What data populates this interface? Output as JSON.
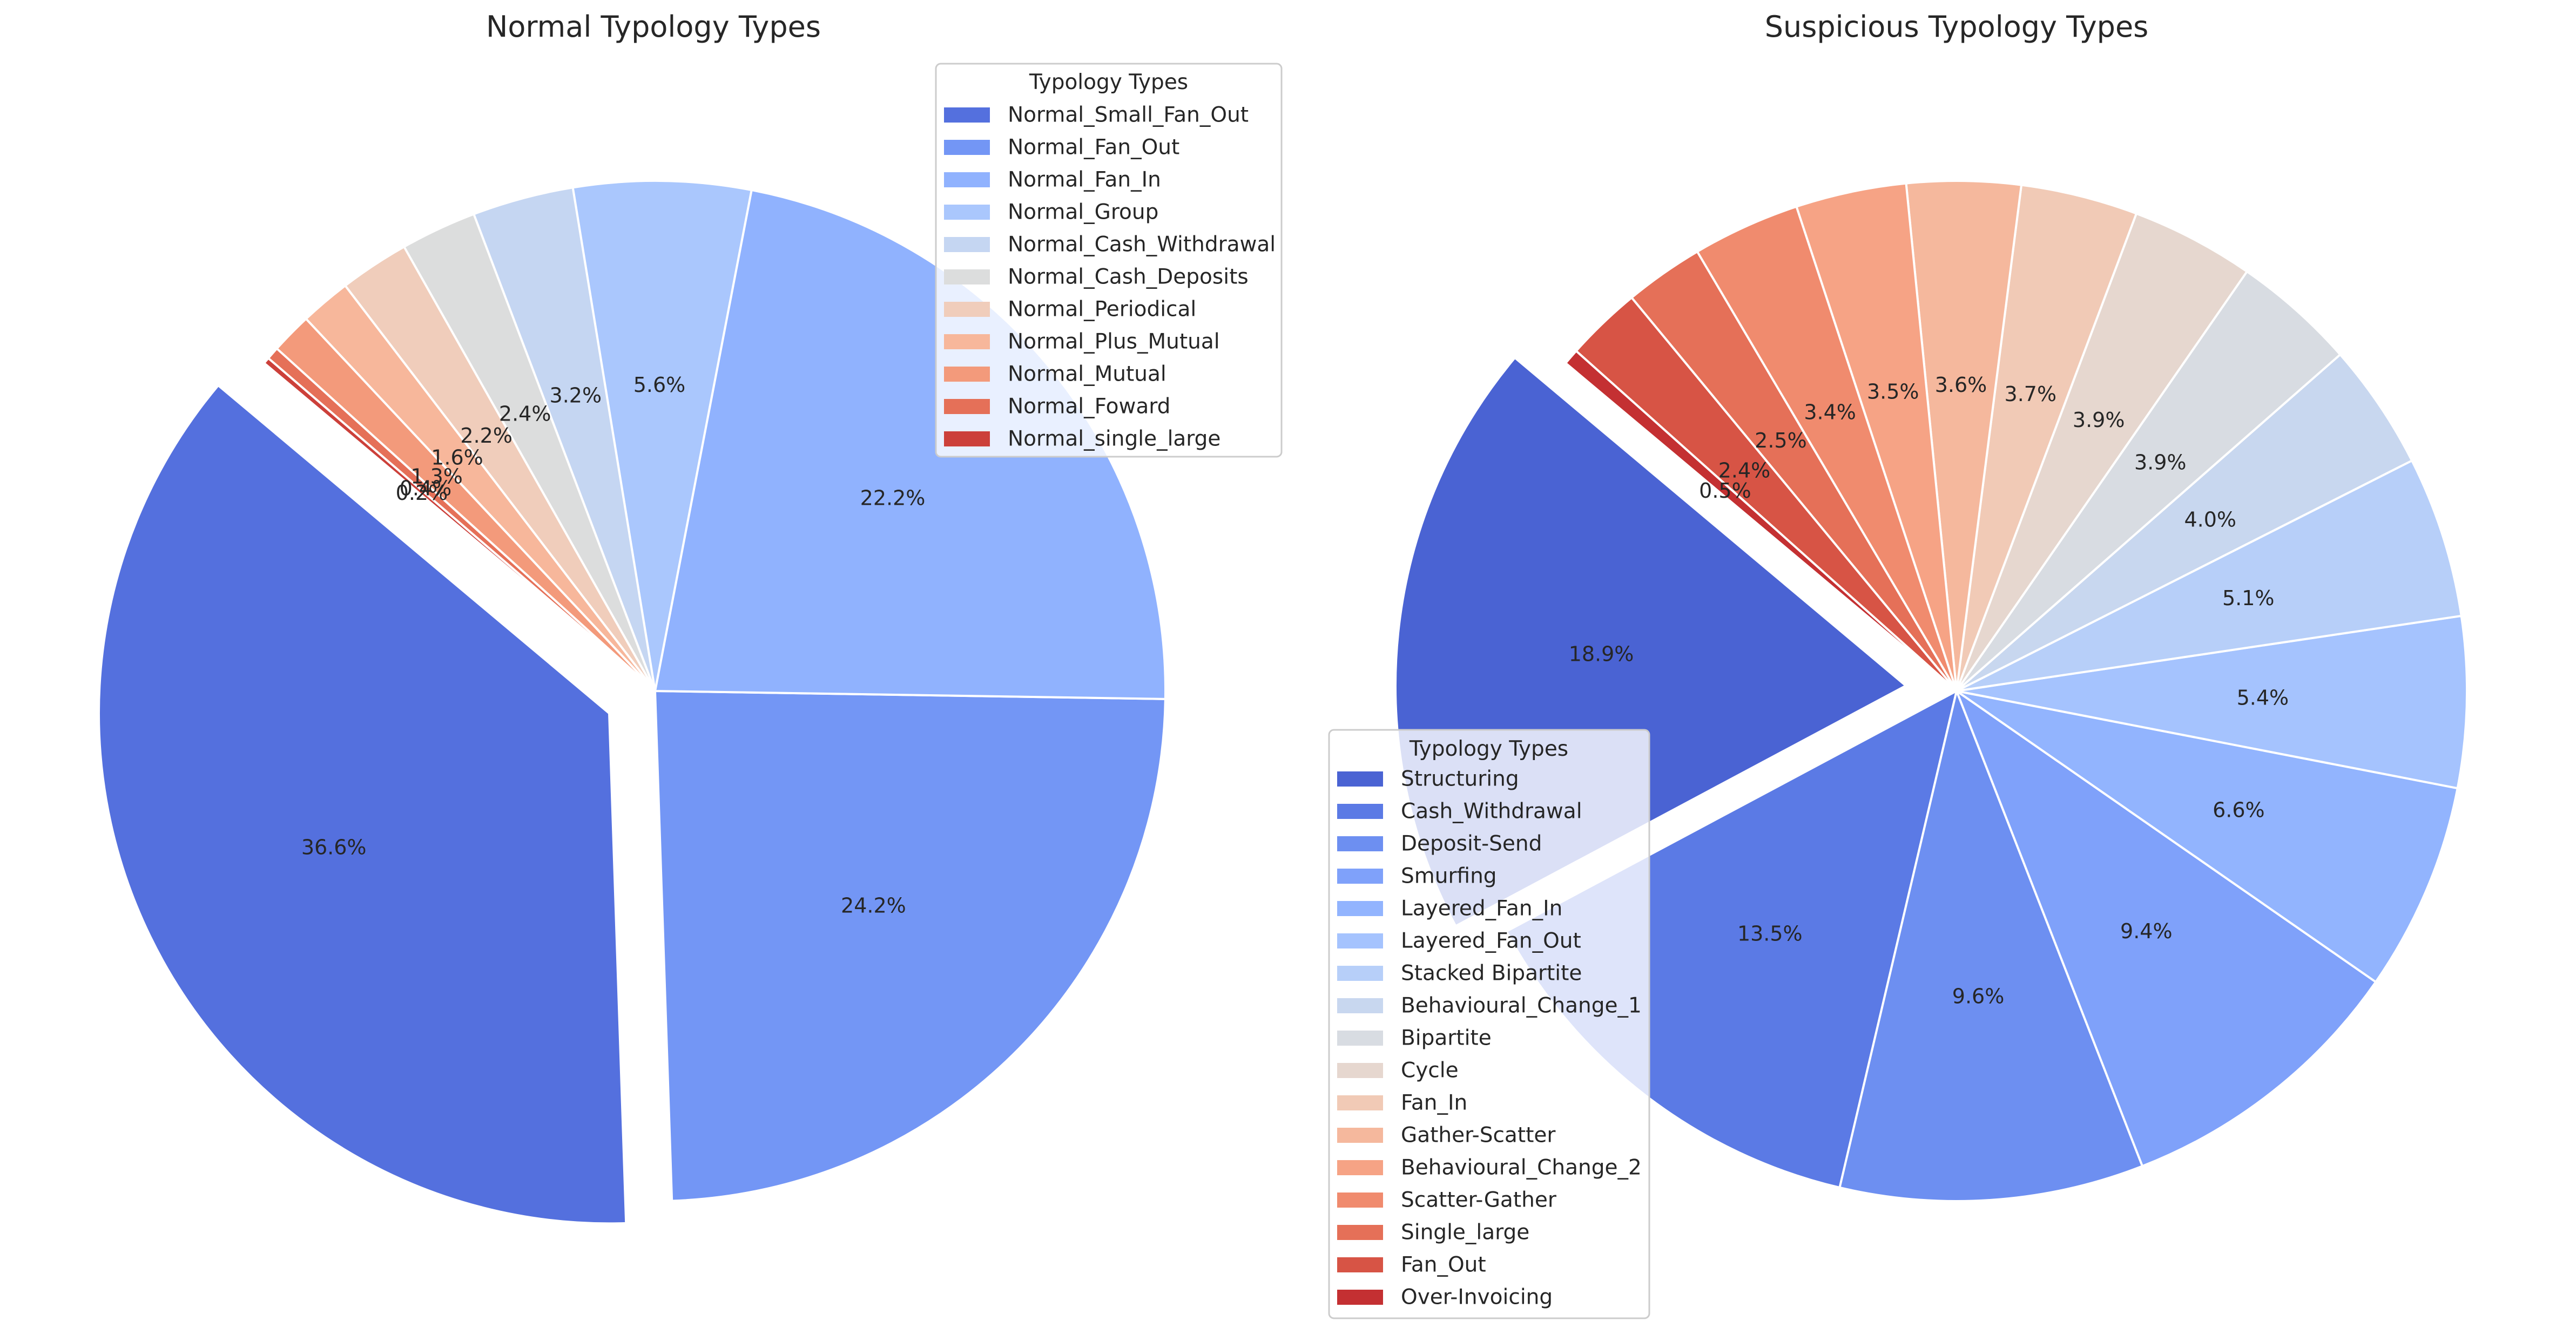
{
  "chart_data": [
    {
      "type": "pie",
      "title": "Normal Typology Types",
      "legend_title": "Typology Types",
      "legend_placement": "top-right",
      "start_angle_deg": 140,
      "labels": [
        "Normal_Small_Fan_Out",
        "Normal_Fan_Out",
        "Normal_Fan_In",
        "Normal_Group",
        "Normal_Cash_Withdrawal",
        "Normal_Cash_Deposits",
        "Normal_Periodical",
        "Normal_Plus_Mutual",
        "Normal_Mutual",
        "Normal_Foward",
        "Normal_single_large"
      ],
      "values": [
        36.6,
        24.2,
        22.2,
        5.6,
        3.2,
        2.4,
        2.2,
        1.6,
        1.3,
        0.4,
        0.2
      ],
      "value_labels": [
        "36.6%",
        "24.2%",
        "22.2%",
        "5.6%",
        "3.2%",
        "2.4%",
        "2.2%",
        "1.6%",
        "1.3%",
        "0.4%",
        "0.2%"
      ],
      "explode": [
        0.1,
        0,
        0,
        0,
        0,
        0,
        0,
        0,
        0,
        0,
        0
      ],
      "colors": [
        "#5470de",
        "#7396f5",
        "#90b2fe",
        "#aac7fd",
        "#c5d6f2",
        "#dcdddd",
        "#f0cdbb",
        "#f7b79b",
        "#f39a7b",
        "#e57058",
        "#cc403a"
      ]
    },
    {
      "type": "pie",
      "title": "Suspicious Typology Types",
      "legend_title": "Typology Types",
      "legend_placement": "lower-center",
      "start_angle_deg": 140,
      "labels": [
        "Structuring",
        "Cash_Withdrawal",
        "Deposit-Send",
        "Smurfing",
        "Layered_Fan_In",
        "Layered_Fan_Out",
        "Stacked Bipartite",
        "Behavioural_Change_1",
        "Bipartite",
        "Cycle",
        "Fan_In",
        "Gather-Scatter",
        "Behavioural_Change_2",
        "Scatter-Gather",
        "Single_large",
        "Fan_Out",
        "Over-Invoicing"
      ],
      "values": [
        18.9,
        13.5,
        9.6,
        9.4,
        6.6,
        5.4,
        5.1,
        4.0,
        3.9,
        3.9,
        3.7,
        3.6,
        3.5,
        3.4,
        2.5,
        2.4,
        0.5
      ],
      "value_labels": [
        "18.9%",
        "13.5%",
        "9.6%",
        "9.4%",
        "6.6%",
        "5.4%",
        "5.1%",
        "4.0%",
        "3.9%",
        "3.9%",
        "3.7%",
        "3.6%",
        "3.5%",
        "3.4%",
        "2.5%",
        "2.4%",
        "0.5%"
      ],
      "explode": [
        0.1,
        0,
        0,
        0,
        0,
        0,
        0,
        0,
        0,
        0,
        0,
        0,
        0,
        0,
        0,
        0,
        0
      ],
      "colors": [
        "#4a63d3",
        "#5b7ae5",
        "#6d8ff1",
        "#7fa1fa",
        "#92b4fe",
        "#a5c3fe",
        "#b7cff9",
        "#c8d7ef",
        "#d8dce2",
        "#e6d7cf",
        "#f1cab6",
        "#f5b89d",
        "#f6a385",
        "#f08b6e",
        "#e57058",
        "#d75445",
        "#c43032"
      ]
    }
  ]
}
